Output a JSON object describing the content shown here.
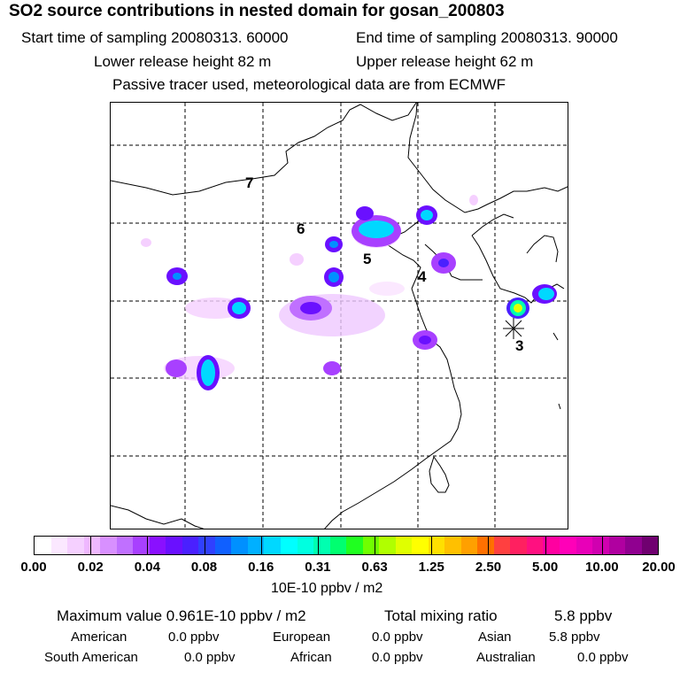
{
  "title": "SO2 source contributions in nested domain for gosan_200803",
  "header": {
    "start_label": "Start time of sampling 20080313. 60000",
    "end_label": "End time of sampling 20080313. 90000",
    "lower_label": "Lower release height   82 m",
    "upper_label": "Upper release height   62 m",
    "note": "Passive tracer used, meteorological data are from ECMWF"
  },
  "map": {
    "region_labels": [
      "7",
      "6",
      "5",
      "4",
      "3"
    ],
    "receptor_marker": "asterisk-icon"
  },
  "colorbar": {
    "colors": [
      "#ffffff",
      "#fbe8ff",
      "#f5d0ff",
      "#efb8ff",
      "#d890ff",
      "#c070ff",
      "#a840ff",
      "#8a10ff",
      "#6a10ff",
      "#4a20ff",
      "#3040ff",
      "#1060ff",
      "#0090ff",
      "#00b0ff",
      "#00d8ff",
      "#00ffff",
      "#00ffe0",
      "#00ffb0",
      "#00ff70",
      "#20ff20",
      "#70ff00",
      "#b0ff00",
      "#e0ff00",
      "#ffff00",
      "#ffe000",
      "#ffc000",
      "#ffa000",
      "#ff7000",
      "#ff4040",
      "#ff2060",
      "#ff1080",
      "#ff00a0",
      "#ff00b8",
      "#e800b8",
      "#d000b0",
      "#b000a0",
      "#900090",
      "#700070"
    ],
    "tick_labels": [
      "0.00",
      "0.02",
      "0.04",
      "0.08",
      "0.16",
      "0.31",
      "0.63",
      "1.25",
      "2.50",
      "5.00",
      "10.00",
      "20.00"
    ],
    "unit": "10E-10 ppbv / m2"
  },
  "stats": {
    "maximum": "Maximum value  0.961E-10 ppbv / m2",
    "total_label": "Total mixing ratio",
    "total_value": "5.8 ppbv",
    "american_label": "American",
    "american_value": "0.0 ppbv",
    "european_label": "European",
    "european_value": "0.0 ppbv",
    "asian_label": "Asian",
    "asian_value": "5.8 ppbv",
    "south_american_label": "South American",
    "south_american_value": "0.0 ppbv",
    "african_label": "African",
    "african_value": "0.0 ppbv",
    "australian_label": "Australian",
    "australian_value": "0.0 ppbv"
  }
}
